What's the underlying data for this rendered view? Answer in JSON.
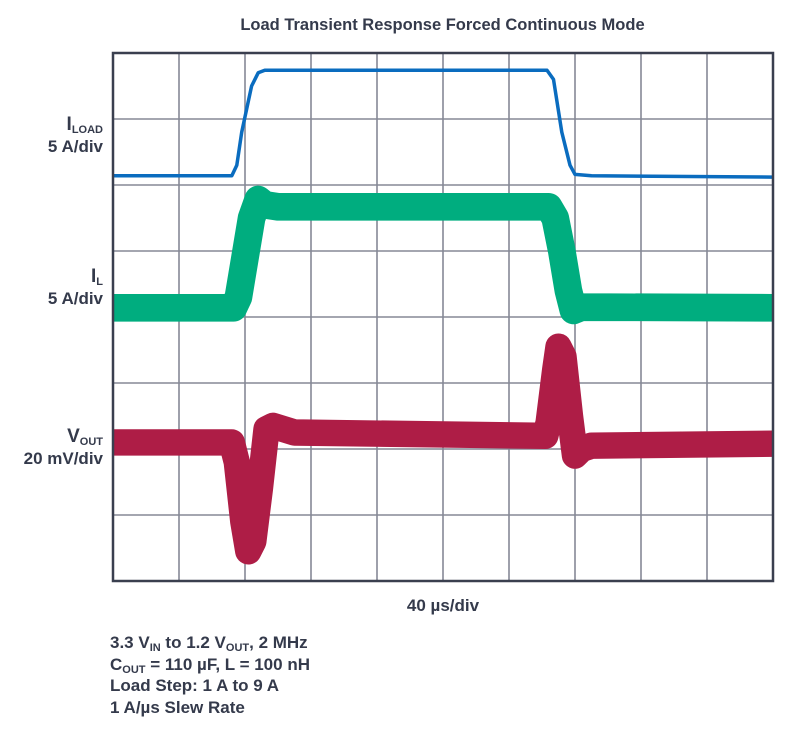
{
  "chart_data": {
    "type": "line",
    "title": "Load Transient Response Forced Continuous Mode",
    "xlabel": "40 µs/div",
    "x_unit": "µs",
    "xlim": [
      0,
      400
    ],
    "ylim_divisions": [
      0,
      8
    ],
    "grid": true,
    "x_divisions": 10,
    "y_divisions": 8,
    "colors": {
      "frame": "#3a3f4f",
      "grid": "#858896",
      "text": "#343a4b"
    },
    "series": [
      {
        "name": "ILOAD",
        "label_main": "I",
        "label_sub": "LOAD",
        "scale": "5 A/div",
        "color": "#0a6cbf",
        "band_div": 0.05,
        "points": [
          [
            0,
            6.14
          ],
          [
            72,
            6.14
          ],
          [
            75,
            6.3
          ],
          [
            78,
            6.8
          ],
          [
            84,
            7.5
          ],
          [
            88,
            7.7
          ],
          [
            92,
            7.74
          ],
          [
            263,
            7.74
          ],
          [
            267,
            7.6
          ],
          [
            272,
            6.8
          ],
          [
            277,
            6.3
          ],
          [
            280,
            6.16
          ],
          [
            290,
            6.14
          ],
          [
            400,
            6.12
          ]
        ]
      },
      {
        "name": "IL",
        "label_main": "I",
        "label_sub": "L",
        "scale": "5 A/div",
        "color": "#00ad7f",
        "band_div": 0.42,
        "points": [
          [
            0,
            4.14
          ],
          [
            73,
            4.14
          ],
          [
            76,
            4.3
          ],
          [
            80,
            4.9
          ],
          [
            84,
            5.5
          ],
          [
            88,
            5.78
          ],
          [
            92,
            5.7
          ],
          [
            100,
            5.67
          ],
          [
            264,
            5.67
          ],
          [
            268,
            5.5
          ],
          [
            272,
            5.0
          ],
          [
            276,
            4.4
          ],
          [
            279,
            4.1
          ],
          [
            284,
            4.15
          ],
          [
            400,
            4.14
          ]
        ]
      },
      {
        "name": "VOUT",
        "label_main": "V",
        "label_sub": "OUT",
        "scale": "20 mV/div",
        "color": "#ae1d46",
        "band_div": 0.4,
        "points": [
          [
            0,
            2.1
          ],
          [
            72,
            2.1
          ],
          [
            75,
            1.8
          ],
          [
            79,
            0.9
          ],
          [
            82,
            0.45
          ],
          [
            85,
            0.6
          ],
          [
            89,
            1.4
          ],
          [
            93,
            2.3
          ],
          [
            97,
            2.35
          ],
          [
            110,
            2.25
          ],
          [
            262,
            2.2
          ],
          [
            264,
            2.4
          ],
          [
            268,
            3.2
          ],
          [
            270,
            3.55
          ],
          [
            273,
            3.4
          ],
          [
            277,
            2.5
          ],
          [
            280,
            1.9
          ],
          [
            284,
            2.0
          ],
          [
            290,
            2.05
          ],
          [
            400,
            2.08
          ]
        ]
      }
    ],
    "notes": [
      {
        "parts": [
          [
            "3.3 V",
            ""
          ],
          [
            "IN",
            "sub"
          ],
          [
            " to 1.2 V",
            ""
          ],
          [
            "OUT",
            "sub"
          ],
          [
            ", 2 MHz",
            ""
          ]
        ]
      },
      {
        "parts": [
          [
            "C",
            ""
          ],
          [
            "OUT",
            "sub"
          ],
          [
            " = 110 µF, L = 100 nH",
            ""
          ]
        ]
      },
      {
        "parts": [
          [
            "Load Step: 1 A to 9 A",
            ""
          ]
        ]
      },
      {
        "parts": [
          [
            "1 A/µs Slew Rate",
            ""
          ]
        ]
      }
    ]
  }
}
